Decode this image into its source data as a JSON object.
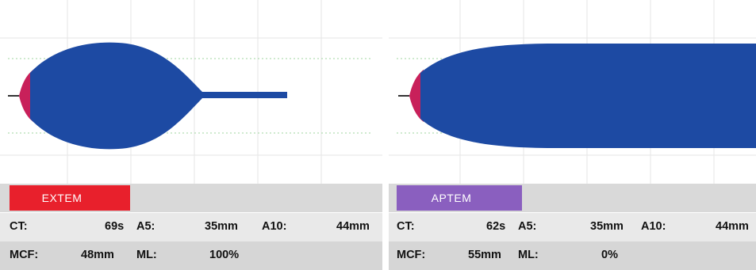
{
  "panels": [
    {
      "tab_label": "EXTEM",
      "tab_color": "#e8202c",
      "ct_label": "CT:",
      "ct_value": "69s",
      "a5_label": "A5:",
      "a5_value": "35mm",
      "a10_label": "A10:",
      "a10_value": "44mm",
      "mcf_label": "MCF:",
      "mcf_value": "48mm",
      "ml_label": "ML:",
      "ml_value": "100%"
    },
    {
      "tab_label": "APTEM",
      "tab_color": "#8a5fbf",
      "ct_label": "CT:",
      "ct_value": "62s",
      "a5_label": "A5:",
      "a5_value": "35mm",
      "a10_label": "A10:",
      "a10_value": "44mm",
      "mcf_label": "MCF:",
      "mcf_value": "55mm",
      "ml_label": "ML:",
      "ml_value": "0%"
    }
  ],
  "colors": {
    "trace": "#1d4aa3",
    "clot_start": "#c8205a",
    "grid_major": "#e6e6e6",
    "grid_dotted": "#9fd49f"
  }
}
